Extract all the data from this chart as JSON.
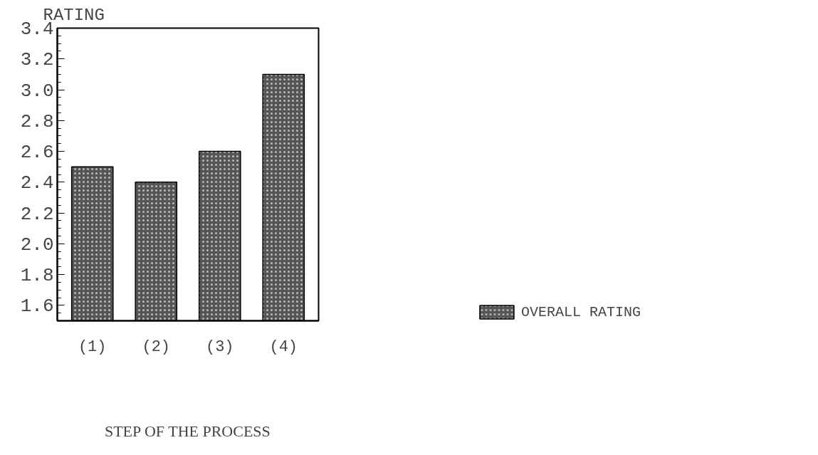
{
  "chart_data": {
    "type": "bar",
    "ylabel": "RATING",
    "xlabel": "STEP OF THE PROCESS",
    "categories": [
      "(1)",
      "(2)",
      "(3)",
      "(4)"
    ],
    "series": [
      {
        "name": "OVERALL RATING",
        "color": "#555555",
        "values": [
          2.5,
          2.4,
          2.6,
          3.1
        ]
      }
    ],
    "ylim": [
      1.5,
      3.4
    ],
    "yticks": [
      1.6,
      1.8,
      {
        "value": 2.0,
        "label": "2.0"
      },
      2.2,
      2.4,
      2.6,
      2.8,
      {
        "value": 3.0,
        "label": "3.0"
      },
      3.2,
      3.4
    ],
    "grid": false,
    "legend": "right"
  }
}
